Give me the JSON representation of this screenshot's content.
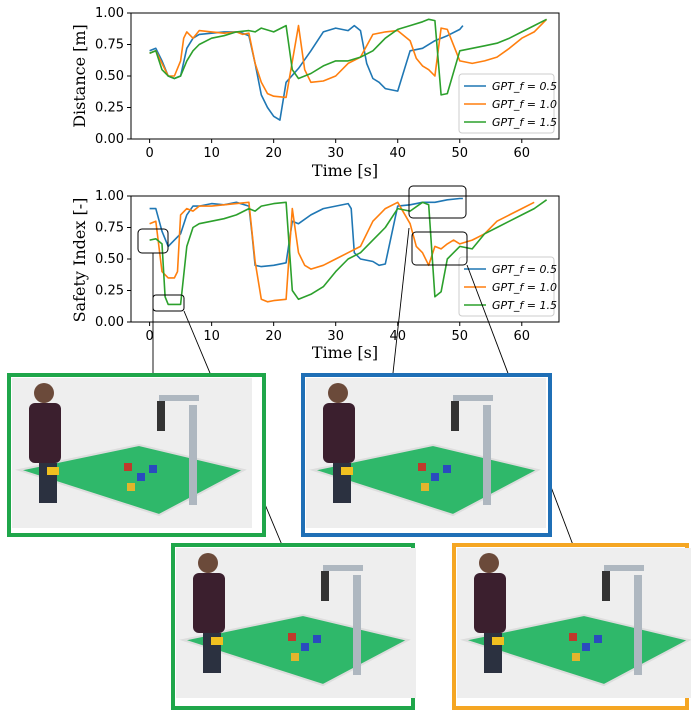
{
  "colors": {
    "blue": "#1f77b4",
    "orange": "#ff7f0e",
    "green": "#2ca02c",
    "photo_green": "#1fa64a",
    "photo_blue": "#1f6fb6",
    "photo_orange": "#f5a623"
  },
  "chart_data": [
    {
      "type": "line",
      "ylabel": "Distance [m]",
      "xlabel": "Time [s]",
      "xlim": [
        -3,
        66
      ],
      "ylim": [
        0,
        1.0
      ],
      "xticks": [
        "0",
        "10",
        "20",
        "30",
        "40",
        "50",
        "60"
      ],
      "yticks": [
        "0.00",
        "0.25",
        "0.50",
        "0.75",
        "1.00"
      ],
      "legend": [
        "GPT_f = 0.5",
        "GPT_f = 1.0",
        "GPT_f = 1.5"
      ],
      "legend_position": "right",
      "series": [
        {
          "name": "GPT_f = 0.5",
          "color": "blue",
          "x": [
            0,
            1,
            2,
            3,
            4,
            5,
            6,
            7,
            8,
            10,
            12,
            14,
            15,
            16,
            17,
            18,
            19,
            20,
            21,
            22,
            24,
            26,
            28,
            30,
            32,
            33,
            34,
            35,
            36,
            37,
            38,
            40,
            42,
            44,
            46,
            48,
            50,
            50.5
          ],
          "y": [
            0.7,
            0.72,
            0.62,
            0.5,
            0.48,
            0.5,
            0.72,
            0.8,
            0.83,
            0.84,
            0.85,
            0.85,
            0.84,
            0.82,
            0.6,
            0.35,
            0.25,
            0.18,
            0.15,
            0.45,
            0.56,
            0.7,
            0.85,
            0.88,
            0.86,
            0.9,
            0.86,
            0.6,
            0.48,
            0.45,
            0.4,
            0.38,
            0.7,
            0.72,
            0.78,
            0.82,
            0.87,
            0.9
          ]
        },
        {
          "name": "GPT_f = 1.0",
          "color": "orange",
          "x": [
            0,
            1,
            2,
            3,
            4,
            5,
            5.5,
            6,
            7,
            8,
            10,
            12,
            14,
            15,
            16,
            17,
            18,
            19,
            20,
            22,
            24,
            25,
            26,
            28,
            30,
            32,
            34,
            36,
            38,
            40,
            42,
            43,
            44,
            45,
            46,
            47,
            48,
            50,
            52,
            54,
            56,
            58,
            60,
            62,
            64
          ],
          "y": [
            0.68,
            0.7,
            0.6,
            0.5,
            0.5,
            0.62,
            0.8,
            0.85,
            0.8,
            0.86,
            0.85,
            0.84,
            0.85,
            0.83,
            0.84,
            0.6,
            0.45,
            0.36,
            0.34,
            0.33,
            0.9,
            0.55,
            0.45,
            0.46,
            0.5,
            0.6,
            0.65,
            0.83,
            0.85,
            0.86,
            0.78,
            0.64,
            0.58,
            0.55,
            0.5,
            0.88,
            0.87,
            0.62,
            0.6,
            0.62,
            0.65,
            0.72,
            0.8,
            0.85,
            0.95
          ]
        },
        {
          "name": "GPT_f = 1.5",
          "color": "green",
          "x": [
            0,
            1,
            2,
            3,
            4,
            5,
            6,
            7,
            8,
            10,
            12,
            14,
            16,
            17,
            18,
            20,
            22,
            23,
            24,
            25,
            26,
            28,
            30,
            32,
            34,
            36,
            38,
            40,
            42,
            44,
            45,
            46,
            47,
            48,
            50,
            52,
            54,
            56,
            58,
            60,
            62,
            64
          ],
          "y": [
            0.68,
            0.7,
            0.55,
            0.5,
            0.48,
            0.5,
            0.62,
            0.7,
            0.75,
            0.8,
            0.82,
            0.85,
            0.86,
            0.85,
            0.88,
            0.85,
            0.9,
            0.55,
            0.48,
            0.5,
            0.52,
            0.58,
            0.62,
            0.62,
            0.65,
            0.7,
            0.8,
            0.87,
            0.9,
            0.93,
            0.95,
            0.94,
            0.35,
            0.36,
            0.7,
            0.72,
            0.74,
            0.76,
            0.8,
            0.85,
            0.9,
            0.95
          ]
        }
      ]
    },
    {
      "type": "line",
      "ylabel": "Safety Index [-]",
      "xlabel": "Time [s]",
      "xlim": [
        -3,
        66
      ],
      "ylim": [
        0,
        1.0
      ],
      "xticks": [
        "0",
        "10",
        "20",
        "30",
        "40",
        "50",
        "60"
      ],
      "yticks": [
        "0.00",
        "0.25",
        "0.50",
        "0.75",
        "1.00"
      ],
      "legend": [
        "GPT_f = 0.5",
        "GPT_f = 1.0",
        "GPT_f = 1.5"
      ],
      "legend_position": "right",
      "series": [
        {
          "name": "GPT_f = 0.5",
          "color": "blue",
          "x": [
            0,
            1,
            2,
            3,
            4,
            5,
            6,
            7,
            8,
            10,
            12,
            14,
            16,
            16.5,
            17,
            18,
            20,
            22,
            23,
            24,
            26,
            28,
            30,
            32,
            32.5,
            33,
            34,
            36,
            37,
            38,
            40,
            42,
            44,
            46,
            48,
            50,
            50.5
          ],
          "y": [
            0.9,
            0.9,
            0.72,
            0.6,
            0.65,
            0.7,
            0.85,
            0.92,
            0.92,
            0.94,
            0.93,
            0.95,
            0.92,
            0.7,
            0.45,
            0.44,
            0.45,
            0.47,
            0.8,
            0.78,
            0.85,
            0.9,
            0.92,
            0.94,
            0.9,
            0.55,
            0.5,
            0.48,
            0.45,
            0.46,
            0.92,
            0.93,
            0.95,
            0.95,
            0.97,
            0.98,
            0.98
          ]
        },
        {
          "name": "GPT_f = 1.0",
          "color": "orange",
          "x": [
            0,
            1,
            2,
            3,
            4,
            4.5,
            5,
            6,
            7,
            8,
            10,
            12,
            14,
            16,
            17,
            18,
            19,
            20,
            22,
            23,
            24,
            25,
            26,
            28,
            30,
            32,
            34,
            36,
            38,
            40,
            42,
            43,
            44,
            45,
            46,
            47,
            48,
            49,
            50,
            52,
            54,
            56,
            58,
            60,
            62
          ],
          "y": [
            0.78,
            0.8,
            0.4,
            0.35,
            0.35,
            0.4,
            0.85,
            0.9,
            0.88,
            0.92,
            0.92,
            0.93,
            0.94,
            0.95,
            0.48,
            0.18,
            0.16,
            0.17,
            0.18,
            0.9,
            0.55,
            0.45,
            0.42,
            0.45,
            0.5,
            0.55,
            0.6,
            0.8,
            0.9,
            0.95,
            0.78,
            0.6,
            0.55,
            0.45,
            0.6,
            0.58,
            0.62,
            0.65,
            0.62,
            0.65,
            0.7,
            0.8,
            0.85,
            0.9,
            0.95
          ]
        },
        {
          "name": "GPT_f = 1.5",
          "color": "green",
          "x": [
            0,
            1,
            2,
            2.5,
            3,
            4,
            5,
            6,
            7,
            8,
            10,
            12,
            14,
            16,
            17,
            18,
            20,
            22,
            23,
            24,
            25,
            26,
            28,
            30,
            32,
            34,
            36,
            38,
            40,
            42,
            44,
            45,
            46,
            47,
            48,
            50,
            52,
            54,
            56,
            58,
            60,
            62,
            64
          ],
          "y": [
            0.65,
            0.66,
            0.62,
            0.2,
            0.14,
            0.14,
            0.14,
            0.6,
            0.75,
            0.78,
            0.8,
            0.82,
            0.85,
            0.9,
            0.88,
            0.92,
            0.94,
            0.95,
            0.25,
            0.18,
            0.2,
            0.22,
            0.28,
            0.4,
            0.5,
            0.55,
            0.65,
            0.75,
            0.9,
            0.88,
            0.95,
            0.93,
            0.2,
            0.24,
            0.5,
            0.6,
            0.58,
            0.7,
            0.75,
            0.8,
            0.85,
            0.9,
            0.97
          ]
        }
      ]
    }
  ]
}
